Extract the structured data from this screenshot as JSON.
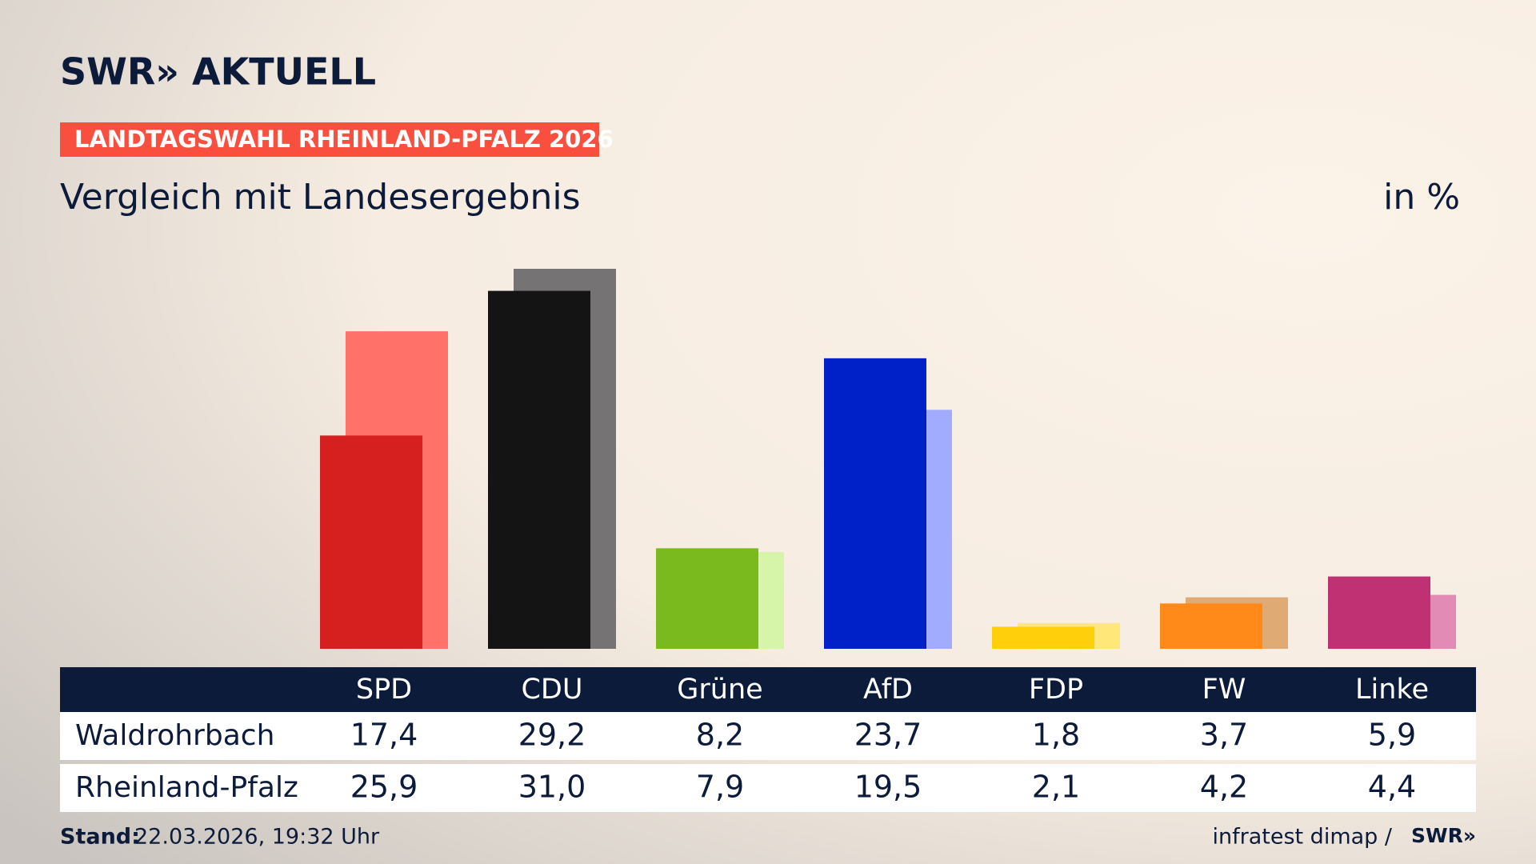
{
  "header": {
    "brand": "SWR» AKTUELL",
    "banner": "LANDTAGSWAHL RHEINLAND-PFALZ 2026"
  },
  "chart_data": {
    "type": "bar",
    "subtitle": "Vergleich mit Landesergebnis",
    "unit": "in %",
    "categories": [
      "SPD",
      "CDU",
      "Grüne",
      "AfD",
      "FDP",
      "FW",
      "Linke"
    ],
    "series": [
      {
        "name": "Waldrohrbach",
        "values": [
          17.4,
          29.2,
          8.2,
          23.7,
          1.8,
          3.7,
          5.9
        ],
        "value_labels": [
          "17,4",
          "29,2",
          "8,2",
          "23,7",
          "1,8",
          "3,7",
          "5,9"
        ],
        "colors": [
          "#d61f1f",
          "#141414",
          "#7aba1e",
          "#0021c8",
          "#ffcf0c",
          "#ff8a1a",
          "#bf3172"
        ]
      },
      {
        "name": "Rheinland-Pfalz",
        "values": [
          25.9,
          31.0,
          7.9,
          19.5,
          2.1,
          4.2,
          4.4
        ],
        "value_labels": [
          "25,9",
          "31,0",
          "7,9",
          "19,5",
          "2,1",
          "4,2",
          "4,4"
        ],
        "colors": [
          "#ff7169",
          "#757373",
          "#d7f5a8",
          "#a2acff",
          "#ffe77a",
          "#dfaa73",
          "#e28bb5"
        ]
      }
    ]
  },
  "footer": {
    "stand_label": "Stand:",
    "stand": "22.03.2026, 19:32 Uhr",
    "source": "infratest dimap /",
    "logo": "SWR»"
  }
}
